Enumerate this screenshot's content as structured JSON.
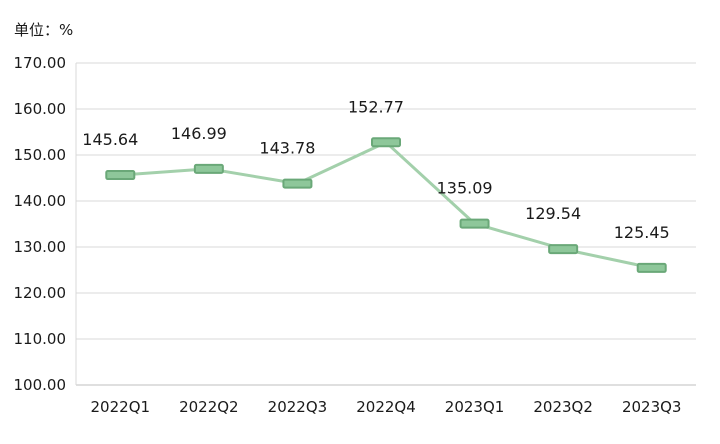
{
  "chart_data": {
    "type": "line",
    "title": "",
    "unit_label": "单位：%",
    "xlabel": "",
    "ylabel": "",
    "categories": [
      "2022Q1",
      "2022Q2",
      "2022Q3",
      "2022Q4",
      "2023Q1",
      "2023Q2",
      "2023Q3"
    ],
    "series": [
      {
        "values": [
          145.64,
          146.99,
          143.78,
          152.77,
          135.09,
          129.54,
          125.45
        ]
      }
    ],
    "data_labels": [
      "145.64",
      "146.99",
      "143.78",
      "152.77",
      "135.09",
      "129.54",
      "125.45"
    ],
    "ylim": [
      100,
      170
    ],
    "yticks": [
      "100.00",
      "110.00",
      "120.00",
      "130.00",
      "140.00",
      "150.00",
      "160.00",
      "170.00"
    ],
    "grid": true,
    "legend": "none",
    "colors": {
      "line": "#a3d0ab",
      "marker_fill": "#8ec79a",
      "marker_stroke": "#6aa878",
      "grid": "#d9d9d9",
      "axis": "#bfbfbf"
    }
  }
}
